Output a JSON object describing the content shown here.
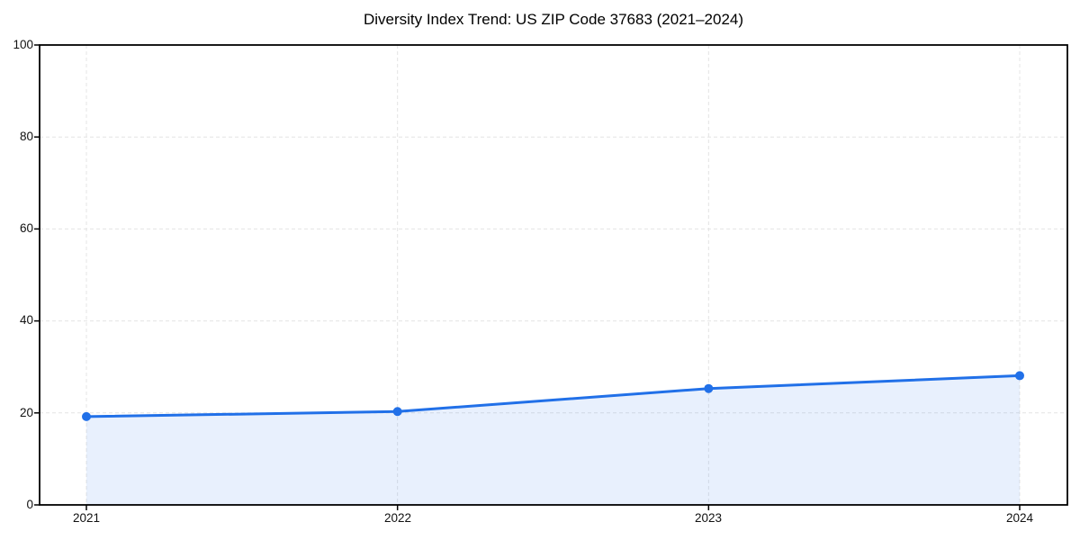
{
  "chart_data": {
    "type": "line",
    "title": "Diversity Index Trend: US ZIP Code 37683 (2021–2024)",
    "x": [
      2021,
      2022,
      2023,
      2024
    ],
    "xtick_labels": [
      "2021",
      "2022",
      "2023",
      "2024"
    ],
    "series": [
      {
        "name": "Diversity Index",
        "values": [
          19.2,
          20.3,
          25.3,
          28.1
        ]
      }
    ],
    "xlabel": "",
    "ylabel": "",
    "ylim": [
      0,
      100
    ],
    "yticks": [
      0,
      20,
      40,
      60,
      80,
      100
    ],
    "ytick_labels": [
      "0",
      "20",
      "40",
      "60",
      "80",
      "100"
    ],
    "grid": true,
    "legend_position": "none",
    "area_fill": true,
    "style": {
      "line_color": "#2170e8",
      "marker_color": "#2170e8",
      "fill_color": "#2170e8",
      "fill_opacity": 0.1,
      "grid_color": "#e4e4e4",
      "spine_color": "#000000",
      "background": "#ffffff",
      "marker_radius": 5,
      "line_width": 3
    }
  }
}
